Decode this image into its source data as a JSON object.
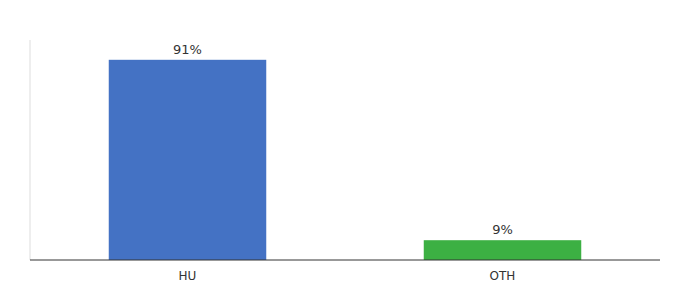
{
  "chart_data": {
    "type": "bar",
    "categories": [
      "HU",
      "OTH"
    ],
    "values": [
      91,
      9
    ],
    "value_labels": [
      "91%",
      "9%"
    ],
    "colors": [
      "#4472c4",
      "#3cb043"
    ],
    "ylim": [
      0,
      100
    ],
    "grid": false,
    "data_labels": true,
    "tick_labels": "x"
  }
}
